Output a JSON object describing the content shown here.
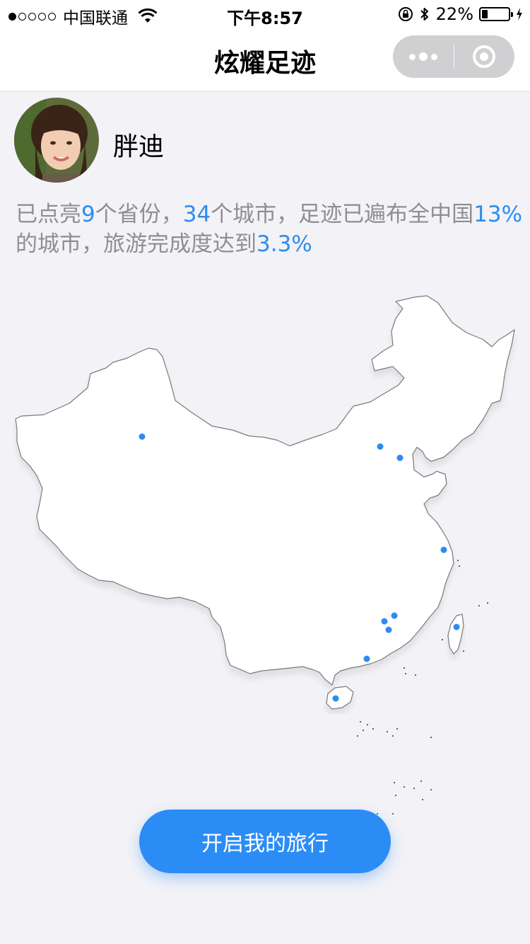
{
  "status_bar": {
    "carrier": "中国联通",
    "time": "下午8:57",
    "battery": "22%",
    "battery_level": 0.22,
    "signal_dots_filled": 1,
    "signal_dots_total": 5
  },
  "nav": {
    "title": "炫耀足迹",
    "more_icon": "more-dots-icon",
    "close_icon": "close-circle-icon"
  },
  "profile": {
    "name": "胖迪",
    "avatar_icon": "user-avatar"
  },
  "summary": {
    "t1": "已点亮",
    "provinces": "9",
    "t2": "个省份，",
    "cities": "34",
    "t3": "个城市，足迹已遍布全中国",
    "coverage": "13%",
    "t4": "的城市，旅游完成度达到",
    "completion": "3.3%"
  },
  "map": {
    "marker_color": "#2d8cf0",
    "land_color": "#ffffff"
  },
  "action": {
    "start_label": "开启我的旅行"
  },
  "colors": {
    "accent": "#2b8cf6",
    "background": "#f2f2f7",
    "secondary_text": "#8e8e93"
  }
}
